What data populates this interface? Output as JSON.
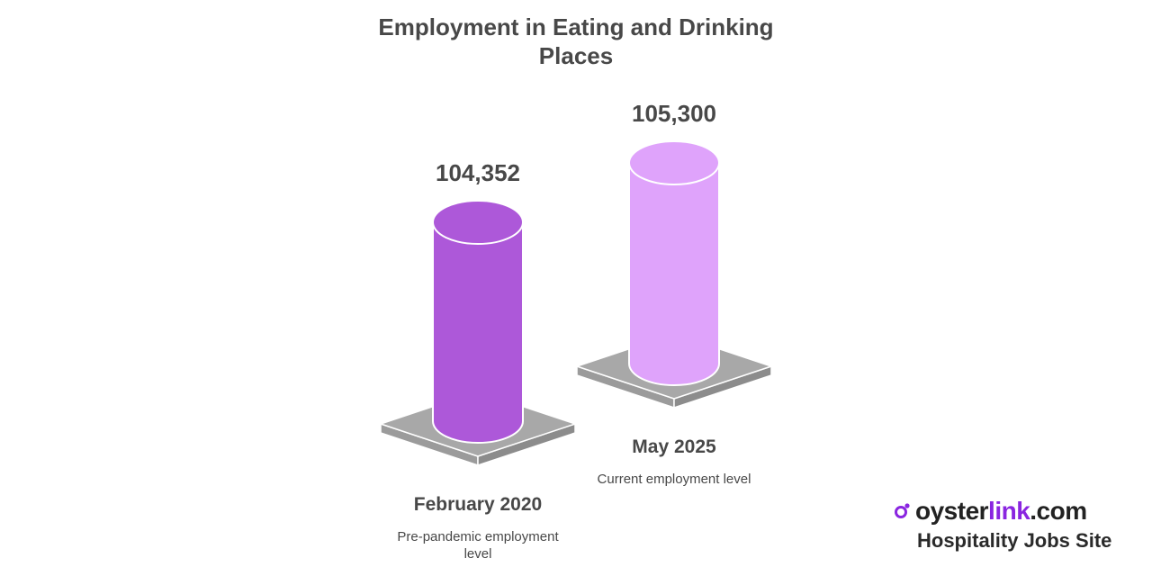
{
  "chart_data": {
    "type": "bar",
    "title": "Employment in Eating and Drinking Places",
    "categories": [
      "February 2020",
      "May 2025"
    ],
    "descriptions": [
      "Pre-pandemic employment level",
      "Current employment level"
    ],
    "values": [
      104352,
      105300
    ],
    "value_labels": [
      "104,352",
      "105,300"
    ],
    "colors": [
      "#ad58d9",
      "#dfa3fb"
    ],
    "xlabel": "",
    "ylabel": "",
    "grid": false,
    "legend": "none"
  },
  "brand": {
    "name_prefix": "oyster",
    "name_accent": "link",
    "name_suffix": ".com",
    "tagline": "Hospitality Jobs Site",
    "accent_color": "#8a25e0"
  }
}
